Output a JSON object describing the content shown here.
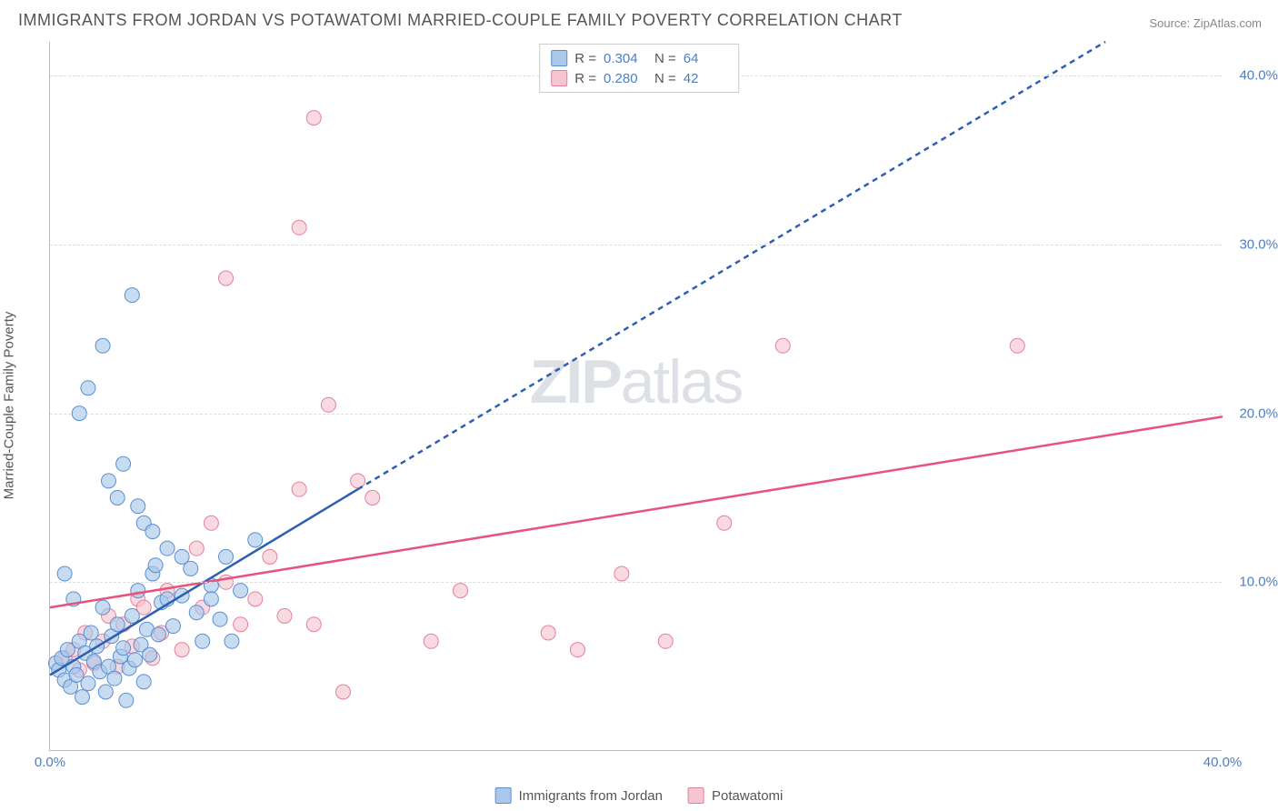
{
  "title": "IMMIGRANTS FROM JORDAN VS POTAWATOMI MARRIED-COUPLE FAMILY POVERTY CORRELATION CHART",
  "source": "Source: ZipAtlas.com",
  "ylabel": "Married-Couple Family Poverty",
  "watermark": {
    "bold": "ZIP",
    "light": "atlas"
  },
  "xlim": [
    0,
    40
  ],
  "ylim": [
    0,
    42
  ],
  "yticks": [
    10.0,
    20.0,
    30.0,
    40.0
  ],
  "xticks": [
    0.0,
    40.0
  ],
  "colors": {
    "axis": "#bbbbbb",
    "grid": "#dddddd",
    "tick_label": "#4a7ec9",
    "text": "#555555",
    "s1_fill": "#a9c8ea",
    "s1_stroke": "#5b8fd0",
    "s1_line": "#2e5fb0",
    "s2_fill": "#f6c5d2",
    "s2_stroke": "#e5809c",
    "s2_line": "#e6537c"
  },
  "marker_radius": 8,
  "marker_opacity": 0.65,
  "line_width": 2.5,
  "series": [
    {
      "key": "s1",
      "label": "Immigrants from Jordan",
      "R": "0.304",
      "N": "64",
      "trend_solid": {
        "x1": 0,
        "y1": 4.5,
        "x2": 10.5,
        "y2": 15.5
      },
      "trend_dashed": {
        "x1": 10.5,
        "y1": 15.5,
        "x2": 36,
        "y2": 42
      },
      "points": [
        [
          0.2,
          5.2
        ],
        [
          0.3,
          4.8
        ],
        [
          0.4,
          5.5
        ],
        [
          0.5,
          4.2
        ],
        [
          0.6,
          6.0
        ],
        [
          0.7,
          3.8
        ],
        [
          0.8,
          5.0
        ],
        [
          0.9,
          4.5
        ],
        [
          1.0,
          6.5
        ],
        [
          1.1,
          3.2
        ],
        [
          1.2,
          5.8
        ],
        [
          1.3,
          4.0
        ],
        [
          1.4,
          7.0
        ],
        [
          1.5,
          5.3
        ],
        [
          1.6,
          6.2
        ],
        [
          1.7,
          4.7
        ],
        [
          1.8,
          8.5
        ],
        [
          1.9,
          3.5
        ],
        [
          2.0,
          5.0
        ],
        [
          2.1,
          6.8
        ],
        [
          2.2,
          4.3
        ],
        [
          2.3,
          7.5
        ],
        [
          2.4,
          5.6
        ],
        [
          2.5,
          6.1
        ],
        [
          2.6,
          3.0
        ],
        [
          2.7,
          4.9
        ],
        [
          2.8,
          8.0
        ],
        [
          2.9,
          5.4
        ],
        [
          3.0,
          9.5
        ],
        [
          3.1,
          6.3
        ],
        [
          3.2,
          4.1
        ],
        [
          3.3,
          7.2
        ],
        [
          3.4,
          5.7
        ],
        [
          3.5,
          10.5
        ],
        [
          3.6,
          11.0
        ],
        [
          3.7,
          6.9
        ],
        [
          3.8,
          8.8
        ],
        [
          4.0,
          9.0
        ],
        [
          4.2,
          7.4
        ],
        [
          4.5,
          9.2
        ],
        [
          4.8,
          10.8
        ],
        [
          5.0,
          8.2
        ],
        [
          5.2,
          6.5
        ],
        [
          5.5,
          9.8
        ],
        [
          5.8,
          7.8
        ],
        [
          6.0,
          11.5
        ],
        [
          6.5,
          9.5
        ],
        [
          7.0,
          12.5
        ],
        [
          1.0,
          20.0
        ],
        [
          1.3,
          21.5
        ],
        [
          2.0,
          16.0
        ],
        [
          2.3,
          15.0
        ],
        [
          2.5,
          17.0
        ],
        [
          3.2,
          13.5
        ],
        [
          1.8,
          24.0
        ],
        [
          2.8,
          27.0
        ],
        [
          3.0,
          14.5
        ],
        [
          3.5,
          13.0
        ],
        [
          4.0,
          12.0
        ],
        [
          4.5,
          11.5
        ],
        [
          5.5,
          9.0
        ],
        [
          6.2,
          6.5
        ],
        [
          0.5,
          10.5
        ],
        [
          0.8,
          9.0
        ]
      ]
    },
    {
      "key": "s2",
      "label": "Potawatomi",
      "R": "0.280",
      "N": "42",
      "trend_solid": {
        "x1": 0,
        "y1": 8.5,
        "x2": 40,
        "y2": 19.8
      },
      "points": [
        [
          0.5,
          5.5
        ],
        [
          0.8,
          6.0
        ],
        [
          1.0,
          4.8
        ],
        [
          1.2,
          7.0
        ],
        [
          1.5,
          5.2
        ],
        [
          1.8,
          6.5
        ],
        [
          2.0,
          8.0
        ],
        [
          2.3,
          5.0
        ],
        [
          2.5,
          7.5
        ],
        [
          2.8,
          6.2
        ],
        [
          3.0,
          9.0
        ],
        [
          3.2,
          8.5
        ],
        [
          3.5,
          5.5
        ],
        [
          3.8,
          7.0
        ],
        [
          4.0,
          9.5
        ],
        [
          4.5,
          6.0
        ],
        [
          5.0,
          12.0
        ],
        [
          5.2,
          8.5
        ],
        [
          5.5,
          13.5
        ],
        [
          6.0,
          10.0
        ],
        [
          6.5,
          7.5
        ],
        [
          7.0,
          9.0
        ],
        [
          7.5,
          11.5
        ],
        [
          8.0,
          8.0
        ],
        [
          8.5,
          15.5
        ],
        [
          9.0,
          7.5
        ],
        [
          9.5,
          20.5
        ],
        [
          10.0,
          3.5
        ],
        [
          10.5,
          16.0
        ],
        [
          11.0,
          15.0
        ],
        [
          13.0,
          6.5
        ],
        [
          14.0,
          9.5
        ],
        [
          17.0,
          7.0
        ],
        [
          18.0,
          6.0
        ],
        [
          19.5,
          10.5
        ],
        [
          21.0,
          6.5
        ],
        [
          23.0,
          13.5
        ],
        [
          25.0,
          24.0
        ],
        [
          6.0,
          28.0
        ],
        [
          8.5,
          31.0
        ],
        [
          9.0,
          37.5
        ],
        [
          33.0,
          24.0
        ]
      ]
    }
  ]
}
